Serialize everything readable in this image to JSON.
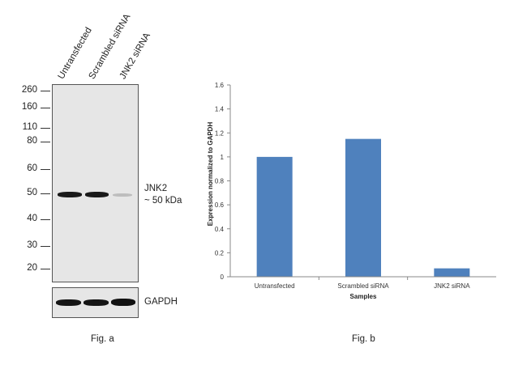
{
  "western_blot": {
    "lanes": [
      "Untransfected",
      "Scrambled siRNA",
      "JNK2 siRNA"
    ],
    "markers": [
      "260",
      "160",
      "110",
      "80",
      "60",
      "50",
      "40",
      "30",
      "20"
    ],
    "target_label_line1": "JNK2",
    "target_label_line2": "~ 50 kDa",
    "loading_control_label": "GAPDH",
    "caption": "Fig. a",
    "target_band_relative_intensity": [
      1.0,
      1.0,
      0.2
    ],
    "loading_band_relative_intensity": [
      1.0,
      1.0,
      1.0
    ]
  },
  "chart_caption": "Fig. b",
  "chart_data": {
    "type": "bar",
    "categories": [
      "Untransfected",
      "Scrambled siRNA",
      "JNK2 siRNA"
    ],
    "values": [
      1.0,
      1.15,
      0.07
    ],
    "xlabel": "Samples",
    "ylabel": "Expression normalized to GAPDH",
    "ylim": [
      0,
      1.6
    ],
    "yticks": [
      "0",
      "0.2",
      "0.4",
      "0.6",
      "0.8",
      "1",
      "1.2",
      "1.4",
      "1.6"
    ],
    "grid": false,
    "bar_color": "#4f81bd"
  }
}
